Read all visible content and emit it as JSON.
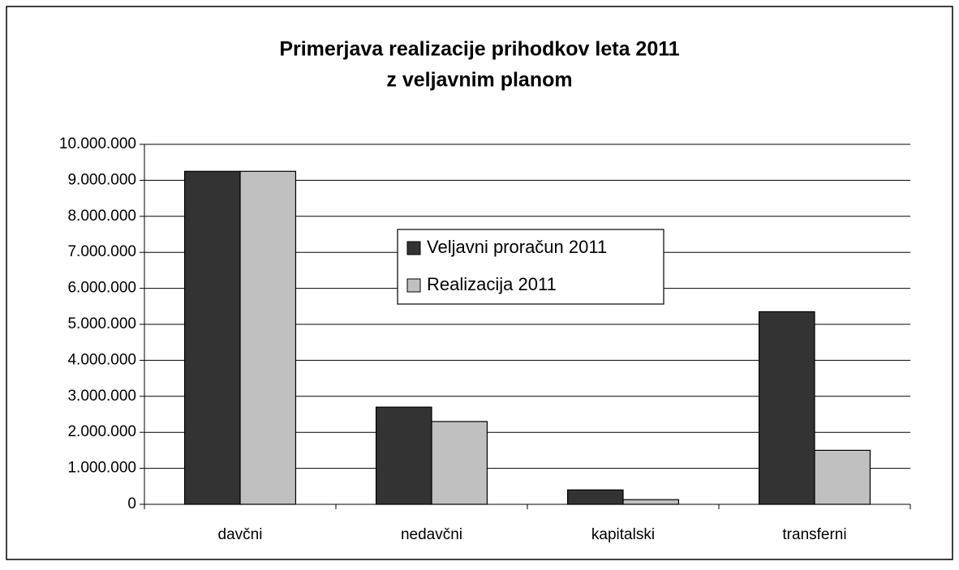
{
  "chart_data": {
    "type": "bar",
    "title": [
      "Primerjava realizacije prihodkov leta 2011",
      "z veljavnim planom"
    ],
    "categories": [
      "davčni",
      "nedavčni",
      "kapitalski",
      "transferni"
    ],
    "series": [
      {
        "name": "Veljavni proračun 2011",
        "color": "#333333",
        "values": [
          9250000,
          2700000,
          400000,
          5350000
        ]
      },
      {
        "name": "Realizacija 2011",
        "color": "#c0c0c0",
        "values": [
          9250000,
          2300000,
          130000,
          1500000
        ]
      }
    ],
    "ylim": [
      0,
      10000000
    ],
    "yticks": [
      0,
      {
        "value": 1000000,
        "label": "1.000.000"
      },
      {
        "value": 2000000,
        "label": "2.000.000"
      },
      {
        "value": 3000000,
        "label": "3.000.000"
      },
      {
        "value": 4000000,
        "label": "4.000.000"
      },
      {
        "value": 5000000,
        "label": "5.000.000"
      },
      {
        "value": 6000000,
        "label": "6.000.000"
      },
      {
        "value": 7000000,
        "label": "7.000.000"
      },
      {
        "value": 8000000,
        "label": "8.000.000"
      },
      {
        "value": 9000000,
        "label": "9.000.000"
      },
      {
        "value": 10000000,
        "label": "10.000.000"
      }
    ],
    "grid": true
  }
}
